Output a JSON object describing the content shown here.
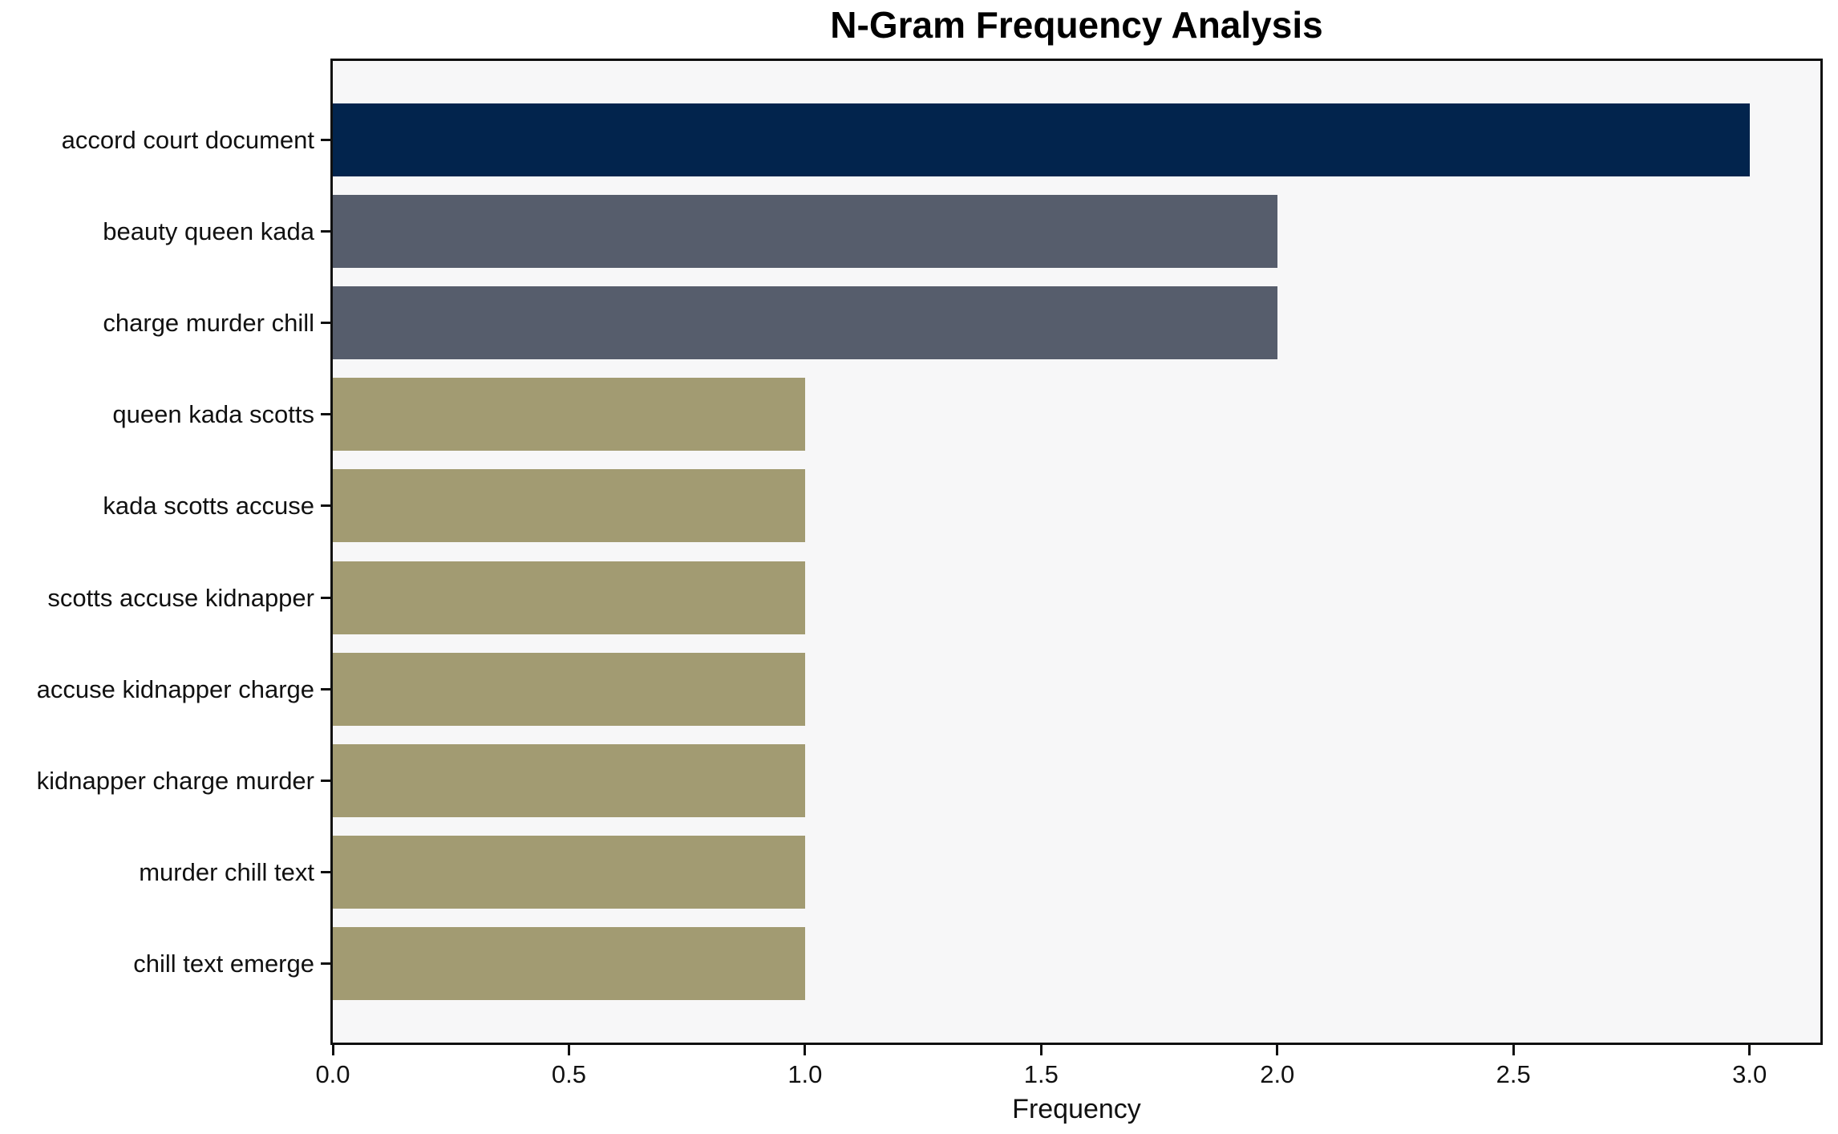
{
  "chart_data": {
    "type": "bar",
    "orientation": "horizontal",
    "title": "N-Gram Frequency Analysis",
    "xlabel": "Frequency",
    "ylabel": "",
    "categories": [
      "accord court document",
      "beauty queen kada",
      "charge murder chill",
      "queen kada scotts",
      "kada scotts accuse",
      "scotts accuse kidnapper",
      "accuse kidnapper charge",
      "kidnapper charge murder",
      "murder chill text",
      "chill text emerge"
    ],
    "values": [
      3,
      2,
      2,
      1,
      1,
      1,
      1,
      1,
      1,
      1
    ],
    "bar_colors": [
      "#02244d",
      "#565d6c",
      "#565d6c",
      "#a29b72",
      "#a29b72",
      "#a29b72",
      "#a29b72",
      "#a29b72",
      "#a29b72",
      "#a29b72"
    ],
    "xticks": [
      "0.0",
      "0.5",
      "1.0",
      "1.5",
      "2.0",
      "2.5",
      "3.0"
    ],
    "xtick_values": [
      0,
      0.5,
      1.0,
      1.5,
      2.0,
      2.5,
      3.0
    ],
    "xlim": [
      0,
      3.15
    ],
    "grid": false,
    "legend_position": "none",
    "plot_background": "#f7f7f8",
    "figure_background": "#ffffff",
    "axis_color": "#101010"
  }
}
